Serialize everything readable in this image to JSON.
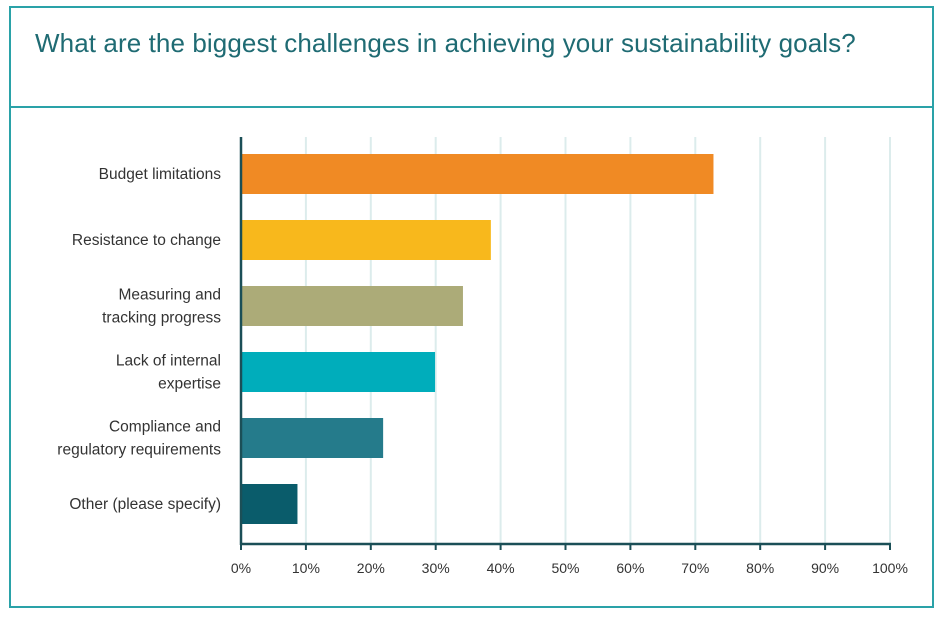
{
  "header": {
    "title": "What are the biggest challenges in achieving your sustainability goals?"
  },
  "colors": {
    "border": "#2aa2a8",
    "title": "#1f6b73",
    "axis": "#1b4f57",
    "grid": "#dcecec"
  },
  "chart_data": {
    "type": "bar",
    "orientation": "horizontal",
    "title": "What are the biggest challenges in achieving your sustainability goals?",
    "xlabel": "",
    "ylabel": "",
    "xlim": [
      0,
      100
    ],
    "x_ticks": [
      "0%",
      "10%",
      "20%",
      "30%",
      "40%",
      "50%",
      "60%",
      "70%",
      "80%",
      "90%",
      "100%"
    ],
    "grid": true,
    "categories": [
      [
        "Budget limitations"
      ],
      [
        "Resistance to change"
      ],
      [
        "Measuring and",
        "tracking progress"
      ],
      [
        "Lack of internal",
        "expertise"
      ],
      [
        "Compliance and",
        "regulatory requirements"
      ],
      [
        "Other (please specify)"
      ]
    ],
    "values": [
      72.8,
      38.5,
      34.2,
      29.9,
      21.9,
      8.7
    ],
    "bar_colors": [
      "#f08a24",
      "#f8b81c",
      "#acab78",
      "#00adbb",
      "#257b8b",
      "#0a5c6b"
    ]
  }
}
